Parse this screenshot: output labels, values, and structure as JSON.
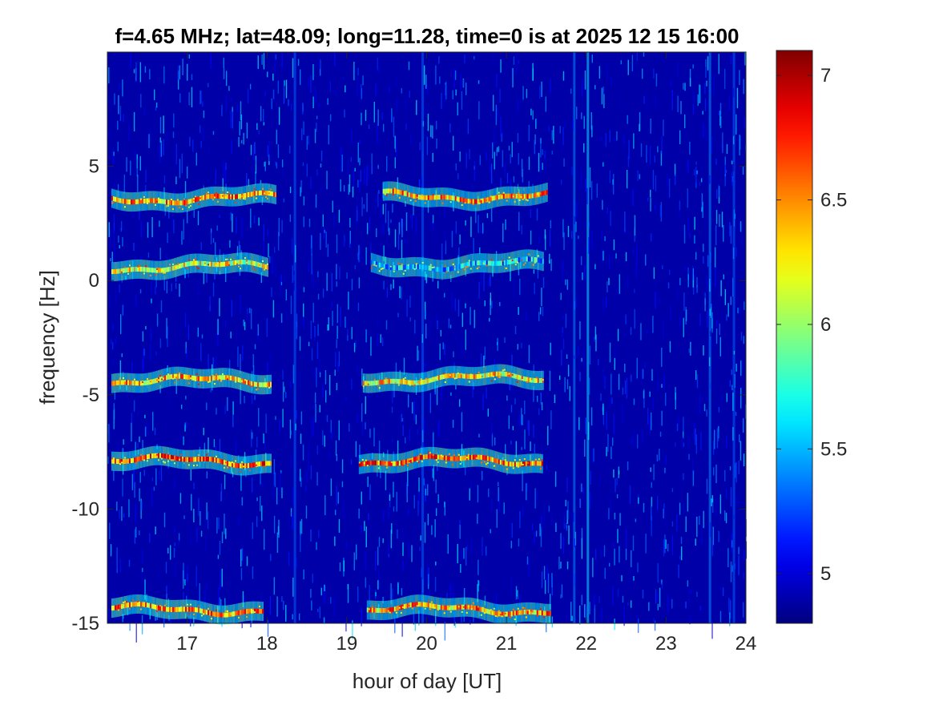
{
  "chart_data": {
    "type": "heatmap",
    "title": "f=4.65 MHz;  lat=48.09; long=11.28, time=0 is at 2025 12 15 16:00",
    "xlabel": "hour of day [UT]",
    "ylabel": "frequency [Hz]",
    "xlim": [
      16.0,
      24.0
    ],
    "ylim": [
      -15,
      10
    ],
    "x_ticks": [
      17,
      18,
      19,
      20,
      21,
      22,
      23,
      24
    ],
    "x_tick_labels": [
      "17",
      "18",
      "19",
      "20",
      "21",
      "22",
      "23",
      "24"
    ],
    "y_ticks": [
      -15,
      -10,
      -5,
      0,
      5
    ],
    "y_tick_labels": [
      "-15",
      "-10",
      "-5",
      "0",
      "5"
    ],
    "colorbar": {
      "colormap": "jet",
      "clim": [
        4.8,
        7.1
      ],
      "ticks": [
        5,
        5.5,
        6,
        6.5,
        7
      ],
      "tick_labels": [
        "5",
        "5.5",
        "6",
        "6.5",
        "7"
      ]
    },
    "background_level": 4.8,
    "traces": [
      {
        "x_range": [
          16.05,
          18.1
        ],
        "freq": 3.6,
        "peak": 6.9
      },
      {
        "x_range": [
          16.05,
          18.0
        ],
        "freq": 0.6,
        "peak": 6.6
      },
      {
        "x_range": [
          16.05,
          18.05
        ],
        "freq": -4.4,
        "peak": 6.8
      },
      {
        "x_range": [
          16.05,
          18.05
        ],
        "freq": -7.9,
        "peak": 7.0
      },
      {
        "x_range": [
          16.05,
          17.95
        ],
        "freq": -14.4,
        "peak": 6.9
      },
      {
        "x_range": [
          19.45,
          21.5
        ],
        "freq": 3.7,
        "peak": 6.9
      },
      {
        "x_range": [
          19.3,
          21.45
        ],
        "freq": 0.7,
        "peak": 6.0
      },
      {
        "x_range": [
          19.2,
          21.45
        ],
        "freq": -4.3,
        "peak": 6.7
      },
      {
        "x_range": [
          19.15,
          21.45
        ],
        "freq": -7.9,
        "peak": 7.0
      },
      {
        "x_range": [
          19.25,
          21.55
        ],
        "freq": -14.4,
        "peak": 6.9
      }
    ],
    "vertical_streaks": [
      {
        "x": 22.02,
        "level": 5.6
      },
      {
        "x": 21.85,
        "level": 5.4
      },
      {
        "x": 18.35,
        "level": 5.3
      },
      {
        "x": 19.95,
        "level": 5.3
      },
      {
        "x": 23.55,
        "level": 5.4
      },
      {
        "x": 23.85,
        "level": 5.3
      }
    ]
  }
}
